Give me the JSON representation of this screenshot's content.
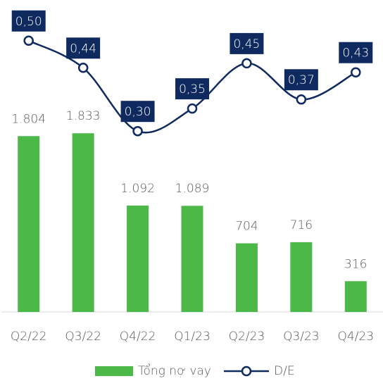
{
  "chart_data": {
    "type": "bar-line",
    "categories": [
      "Q2/22",
      "Q3/22",
      "Q4/22",
      "Q1/23",
      "Q2/23",
      "Q3/23",
      "Q4/23"
    ],
    "series": [
      {
        "name": "Tổng nợ vay",
        "type": "bar",
        "color": "#4cb848",
        "values": [
          1804,
          1833,
          1092,
          1089,
          704,
          716,
          316
        ],
        "value_labels": [
          "1.804",
          "1.833",
          "1.092",
          "1.089",
          "704",
          "716",
          "316"
        ]
      },
      {
        "name": "D/E",
        "type": "line",
        "axis": "y2",
        "color": "#0f2a5e",
        "values": [
          0.5,
          0.44,
          0.3,
          0.35,
          0.45,
          0.37,
          0.43
        ],
        "value_labels": [
          "0,50",
          "0,44",
          "0,30",
          "0,35",
          "0,45",
          "0,37",
          "0,43"
        ]
      }
    ],
    "ylim": [
      0,
      3200
    ],
    "y2lim": [
      -0.1,
      0.59
    ],
    "legend": "bottom"
  }
}
